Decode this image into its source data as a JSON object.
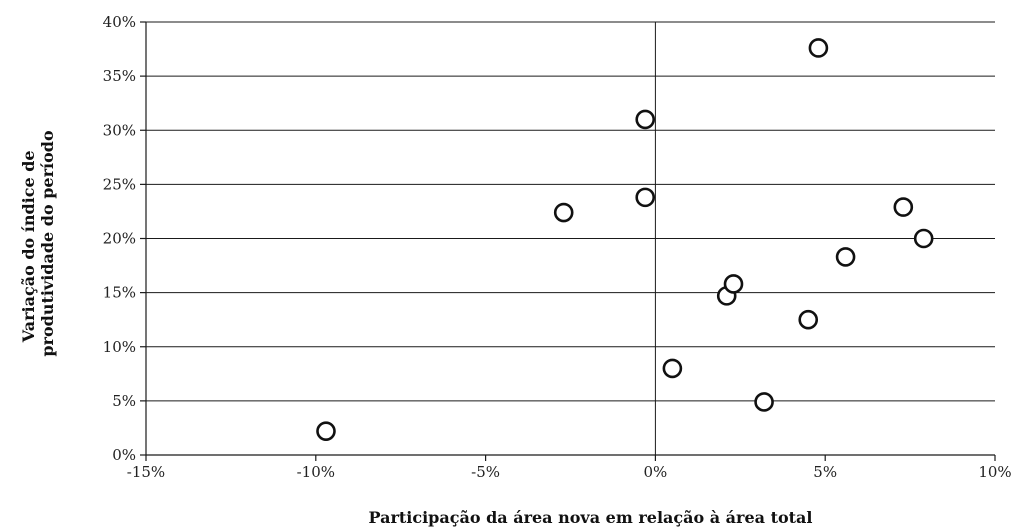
{
  "chart_data": {
    "type": "scatter",
    "title": "",
    "xlabel": "Participação da área nova em relação à área total",
    "ylabel_lines": [
      "Variação do índice de",
      "produtividade do período"
    ],
    "xlim": [
      -15,
      10
    ],
    "ylim": [
      0,
      40
    ],
    "x_ticks": [
      -15,
      -10,
      -5,
      0,
      5,
      10
    ],
    "y_ticks": [
      0,
      5,
      10,
      15,
      20,
      25,
      30,
      35,
      40
    ],
    "x_tick_labels": [
      "-15%",
      "-10%",
      "-5%",
      "0%",
      "5%",
      "10%"
    ],
    "y_tick_labels": [
      "0%",
      "5%",
      "10%",
      "15%",
      "20%",
      "25%",
      "30%",
      "35%",
      "40%"
    ],
    "grid": "horizontal",
    "legend": "none",
    "marker": "open-circle",
    "marker_color": "#111111",
    "points": [
      {
        "x": -9.7,
        "y": 2.2
      },
      {
        "x": -2.7,
        "y": 22.4
      },
      {
        "x": -0.3,
        "y": 31.0
      },
      {
        "x": -0.3,
        "y": 23.8
      },
      {
        "x": 0.5,
        "y": 8.0
      },
      {
        "x": 2.1,
        "y": 14.7
      },
      {
        "x": 2.3,
        "y": 15.8
      },
      {
        "x": 3.2,
        "y": 4.9
      },
      {
        "x": 4.5,
        "y": 12.5
      },
      {
        "x": 4.8,
        "y": 37.6
      },
      {
        "x": 5.6,
        "y": 18.3
      },
      {
        "x": 7.3,
        "y": 22.9
      },
      {
        "x": 7.9,
        "y": 20.0
      }
    ]
  }
}
